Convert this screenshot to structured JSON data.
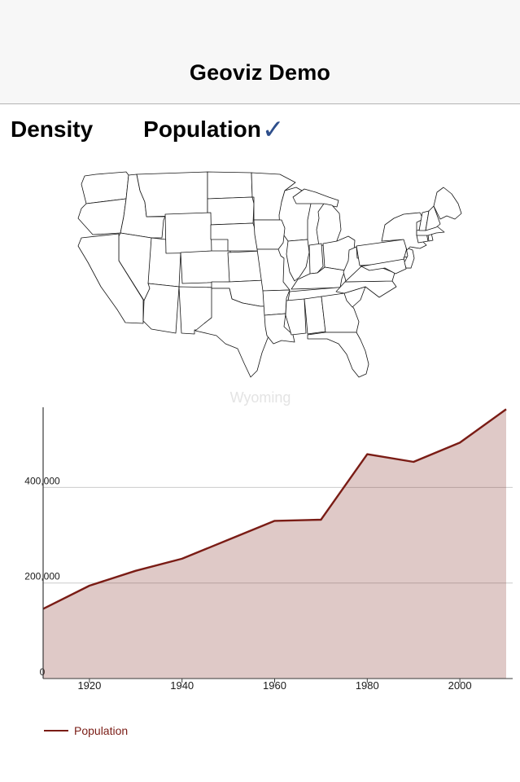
{
  "header": {
    "title": "Geoviz Demo"
  },
  "tabs": {
    "items": [
      {
        "label": "Density",
        "selected": false
      },
      {
        "label": "Population",
        "selected": true
      }
    ],
    "check_glyph": "✓",
    "check_color": "#2d4e8b"
  },
  "map": {
    "selected_state": "WY",
    "stroke_color": "#141414",
    "states": {
      "WA": "#f5d3d0",
      "OR": "#f9e2df",
      "CA": "#0c0c0c",
      "NV": "#fdf6f5",
      "ID": "#fdf5f3",
      "MT": "#fefbfa",
      "WY": "#fb0e0e",
      "UT": "#fcf1ef",
      "CO": "#f8dcd8",
      "AZ": "#f3d0cc",
      "NM": "#fdf5f4",
      "ND": "#fefbfa",
      "SD": "#fefaf9",
      "NE": "#fceeec",
      "KS": "#fae8e5",
      "OK": "#f7dbd7",
      "TX": "#b17170",
      "MN": "#f8dedb",
      "IA": "#f9e3e0",
      "MO": "#f3cfcb",
      "AR": "#f9e2df",
      "LA": "#f7dcd9",
      "WI": "#f0c9c5",
      "MIUP": "#d9948f",
      "MI": "#d9948f",
      "IL": "#c17f7c",
      "IN": "#db9b96",
      "OH": "#c98884",
      "KY": "#fceeec",
      "TN": "#efc5c1",
      "MS": "#fbebe9",
      "AL": "#f5d5d1",
      "GA": "#eec0bb",
      "FL": "#cc8a85",
      "SC": "#f2ccc8",
      "NC": "#edbdb9",
      "VA": "#f2cdc9",
      "WV": "#fdf4f3",
      "MD": "#b87f7c",
      "DE": "#f0c5c1",
      "NJ": "#d98f8b",
      "PA": "#c5837f",
      "NY": "#a77170",
      "CT": "#c48481",
      "RI": "#e0a49f",
      "MA": "#eab8b3",
      "VT": "#fefcfb",
      "NH": "#fdf7f6",
      "ME": "#fbece9"
    }
  },
  "chart_data": {
    "type": "area",
    "title": "Wyoming",
    "series": [
      {
        "name": "Population",
        "x": [
          1910,
          1920,
          1930,
          1940,
          1950,
          1960,
          1970,
          1980,
          1990,
          2000,
          2010
        ],
        "values": [
          145965,
          194402,
          225565,
          250742,
          290529,
          330066,
          332416,
          469557,
          453588,
          493782,
          563626
        ]
      }
    ],
    "xlim": [
      1910,
      2010
    ],
    "ylim": [
      0,
      570000
    ],
    "xticks": [
      {
        "value": 1920,
        "label": "1920"
      },
      {
        "value": 1940,
        "label": "1940"
      },
      {
        "value": 1960,
        "label": "1960"
      },
      {
        "value": 1980,
        "label": "1980"
      },
      {
        "value": 2000,
        "label": "2000"
      }
    ],
    "yticks": [
      {
        "value": 0,
        "label": "0"
      },
      {
        "value": 200000,
        "label": "200,000"
      },
      {
        "value": 400000,
        "label": "400,000"
      }
    ],
    "grid": true,
    "legend_position": "bottom-left",
    "line_color": "#7a1c15",
    "fill_color": "rgba(122,28,21,0.24)",
    "grid_color": "#cccccc",
    "axis_color": "#3a3a3a",
    "tick_label_color": "#1a1a1a",
    "title_color": "#e4e4e4"
  },
  "legend": {
    "label": "Population"
  }
}
